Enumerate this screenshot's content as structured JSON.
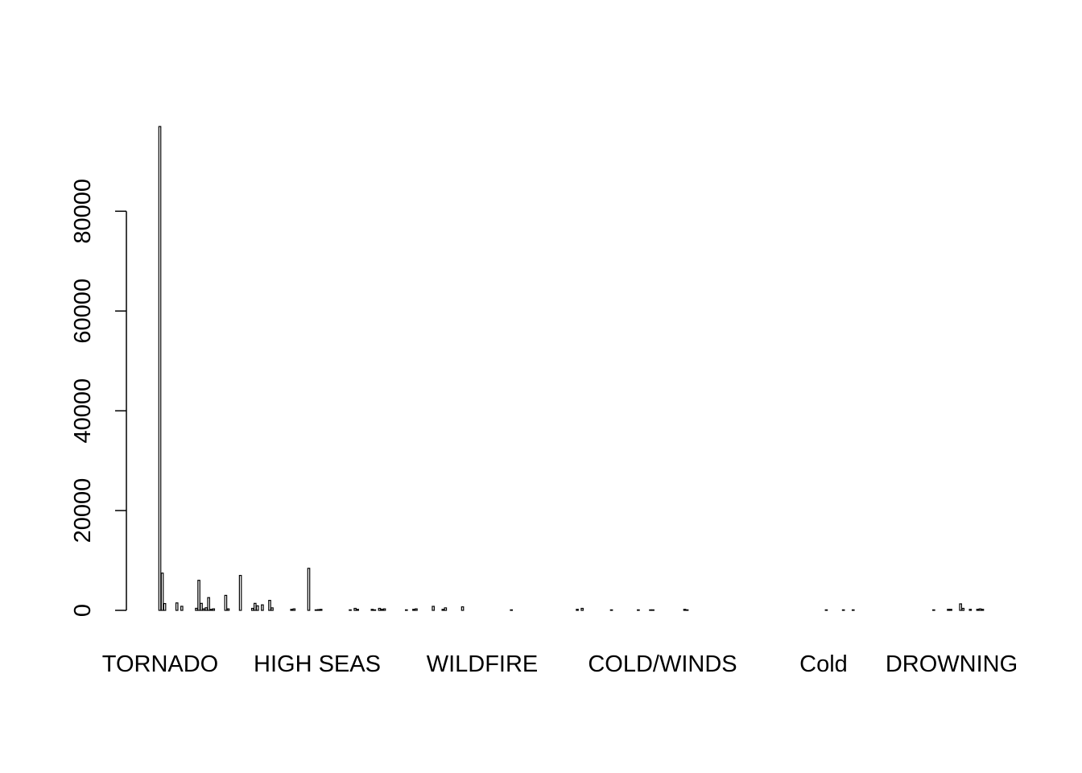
{
  "chart_data": {
    "type": "bar",
    "title": "",
    "xlabel": "",
    "ylabel": "",
    "ylim": [
      0,
      97000
    ],
    "yticks": [
      0,
      20000,
      40000,
      60000,
      80000
    ],
    "x_tick_labels": [
      "TORNADO",
      "HIGH SEAS",
      "WILDFIRE",
      "COLD/WINDS",
      "Cold",
      "DROWNING"
    ],
    "values": [
      96979,
      7461,
      1361,
      0,
      0,
      0,
      0,
      1488,
      0,
      812,
      0,
      0,
      0,
      0,
      0,
      410,
      6021,
      1400,
      300,
      520,
      2551,
      200,
      300,
      0,
      0,
      0,
      0,
      3000,
      300,
      0,
      0,
      0,
      0,
      7000,
      0,
      0,
      0,
      0,
      400,
      1400,
      900,
      0,
      1100,
      0,
      0,
      2000,
      500,
      0,
      0,
      0,
      0,
      0,
      0,
      0,
      200,
      300,
      0,
      0,
      0,
      0,
      0,
      8428,
      0,
      0,
      100,
      150,
      200,
      0,
      0,
      0,
      0,
      0,
      0,
      0,
      0,
      0,
      0,
      0,
      100,
      0,
      400,
      200,
      0,
      0,
      0,
      0,
      0,
      200,
      100,
      0,
      400,
      200,
      300,
      0,
      0,
      0,
      0,
      0,
      0,
      0,
      0,
      100,
      0,
      0,
      200,
      300,
      0,
      0,
      0,
      0,
      0,
      0,
      800,
      0,
      0,
      0,
      200,
      500,
      0,
      0,
      0,
      0,
      0,
      0,
      700,
      0,
      0,
      0,
      0,
      0,
      0,
      0,
      0,
      0,
      0,
      0,
      0,
      0,
      0,
      0,
      0,
      0,
      0,
      0,
      100,
      0,
      0,
      0,
      0,
      0,
      0,
      0,
      0,
      0,
      0,
      0,
      0,
      0,
      0,
      0,
      0,
      0,
      0,
      0,
      0,
      0,
      0,
      0,
      0,
      0,
      0,
      200,
      0,
      400,
      0,
      0,
      0,
      0,
      0,
      0,
      0,
      0,
      0,
      0,
      0,
      100,
      0,
      0,
      0,
      0,
      0,
      0,
      0,
      0,
      0,
      0,
      100,
      0,
      0,
      0,
      0,
      100,
      100,
      0,
      0,
      0,
      0,
      0,
      0,
      0,
      0,
      0,
      0,
      0,
      0,
      200,
      100,
      0,
      0,
      0,
      0,
      0,
      0,
      0,
      0,
      0,
      0,
      0,
      0,
      0,
      0,
      0,
      0,
      0,
      0,
      0,
      0,
      0,
      0,
      0,
      0,
      0,
      0,
      0,
      0,
      0,
      0,
      0,
      0,
      0,
      0,
      0,
      0,
      0,
      0,
      0,
      0,
      0,
      0,
      0,
      0,
      0,
      0,
      0,
      0,
      0,
      0,
      0,
      0,
      0,
      0,
      0,
      0,
      100,
      0,
      0,
      0,
      0,
      0,
      0,
      100,
      0,
      0,
      0,
      100,
      0,
      0,
      0,
      0,
      0,
      0,
      0,
      0,
      0,
      0,
      0,
      0,
      0,
      0,
      0,
      0,
      0,
      0,
      0,
      0,
      0,
      0,
      0,
      0,
      0,
      0,
      0,
      0,
      0,
      0,
      0,
      0,
      100,
      0,
      0,
      0,
      0,
      0,
      200,
      200,
      0,
      0,
      0,
      1300,
      400,
      0,
      0,
      200,
      0,
      0,
      200,
      300,
      200
    ],
    "bar_fill": "#ffffff",
    "bar_stroke": "#000000",
    "grid": false,
    "legend": "none"
  }
}
